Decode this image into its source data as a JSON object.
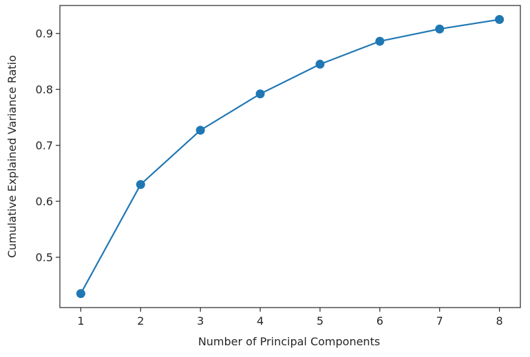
{
  "chart_data": {
    "type": "line",
    "x": [
      1,
      2,
      3,
      4,
      5,
      6,
      7,
      8
    ],
    "series": [
      {
        "values": [
          0.435,
          0.63,
          0.727,
          0.792,
          0.845,
          0.886,
          0.908,
          0.925
        ],
        "color": "#1f77b4",
        "marker": "circle"
      }
    ],
    "xlabel": "Number of Principal Components",
    "ylabel": "Cumulative Explained Variance Ratio",
    "xlim": [
      0.65,
      8.35
    ],
    "ylim": [
      0.41,
      0.95
    ],
    "xticks": [
      1,
      2,
      3,
      4,
      5,
      6,
      7,
      8
    ],
    "yticks": [
      0.5,
      0.6,
      0.7,
      0.8,
      0.9
    ],
    "xtick_labels": [
      "1",
      "2",
      "3",
      "4",
      "5",
      "6",
      "7",
      "8"
    ],
    "ytick_labels": [
      "0.5",
      "0.6",
      "0.7",
      "0.8",
      "0.9"
    ],
    "grid": false,
    "legend": "none"
  }
}
